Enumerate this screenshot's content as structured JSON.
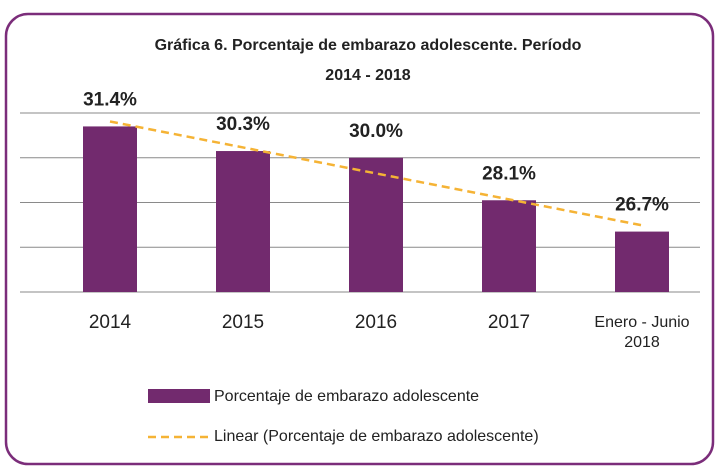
{
  "chart_data": {
    "type": "bar",
    "title": "Gráfica 6. Porcentaje de embarazo adolescente. Período",
    "subtitle": "2014 - 2018",
    "categories": [
      "2014",
      "2015",
      "2016",
      "2017",
      "Enero - Junio 2018"
    ],
    "series": [
      {
        "name": "Porcentaje de embarazo adolescente",
        "color": "#722a6e",
        "values": [
          31.4,
          30.3,
          30.0,
          28.1,
          26.7
        ],
        "value_labels": [
          "31.4%",
          "30.3%",
          "30.0%",
          "28.1%",
          "26.7%"
        ]
      }
    ],
    "trendline": {
      "name": "Linear (Porcentaje de embarazo adolescente)",
      "color": "#f5b335"
    },
    "ylim": [
      24,
      32
    ],
    "yticks": [
      24,
      26,
      28,
      30,
      32
    ],
    "grid": true
  }
}
